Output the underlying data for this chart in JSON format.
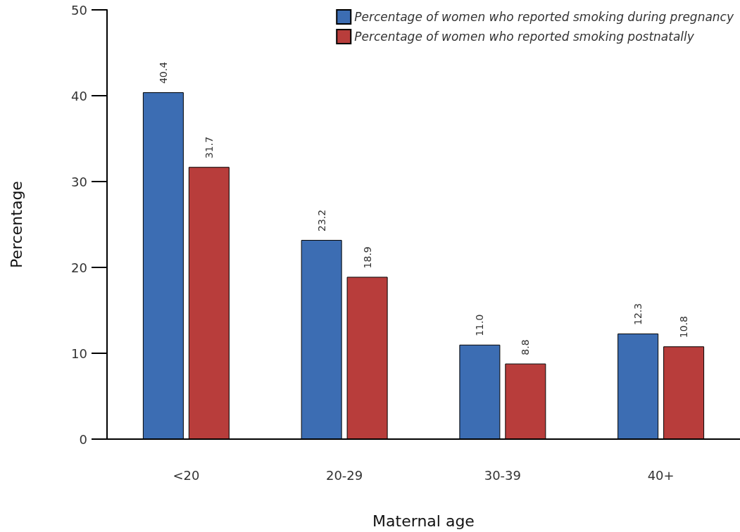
{
  "chart_data": {
    "type": "bar",
    "xlabel": "Maternal age",
    "ylabel": "Percentage",
    "categories": [
      "<20",
      "20-29",
      "30-39",
      "40+"
    ],
    "series": [
      {
        "name": "Percentage of women who reported smoking during pregnancy",
        "color": "#3c6db3",
        "values": [
          40.4,
          23.2,
          11.0,
          12.3
        ],
        "value_labels": [
          "40.4",
          "23.2",
          "11.0",
          "12.3"
        ]
      },
      {
        "name": "Percentage of women who reported smoking postnatally",
        "color": "#b83d3b",
        "values": [
          31.7,
          18.9,
          8.8,
          10.8
        ],
        "value_labels": [
          "31.7",
          "18.9",
          "8.8",
          "10.8"
        ]
      }
    ],
    "ylim": [
      0,
      50
    ],
    "yticks": [
      0,
      10,
      20,
      30,
      40,
      50
    ],
    "grid": false,
    "legend": "top right"
  }
}
